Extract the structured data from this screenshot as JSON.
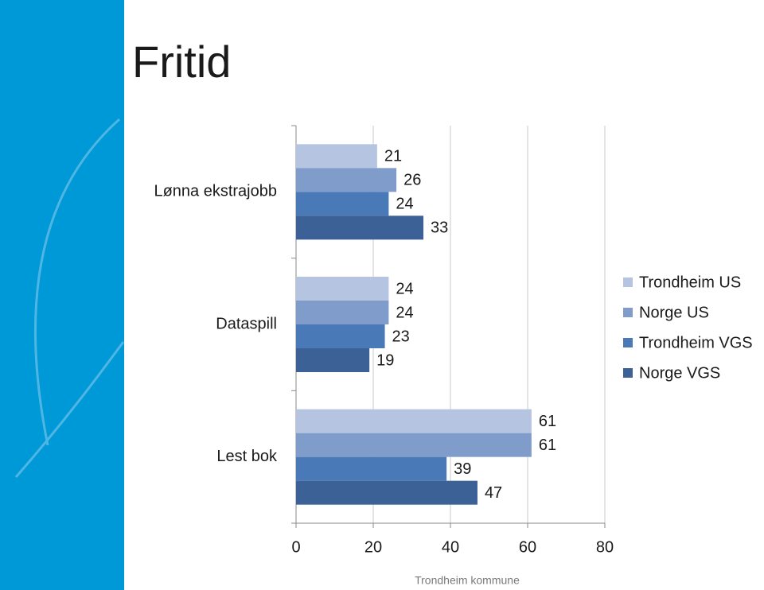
{
  "chart_data": {
    "type": "bar",
    "orientation": "horizontal",
    "title": "Fritid",
    "categories": [
      "Lønna ekstrajobb",
      "Dataspill",
      "Lest bok"
    ],
    "series": [
      {
        "name": "Trondheim US",
        "color": "#b5c4e0",
        "values": [
          21,
          24,
          61
        ]
      },
      {
        "name": "Norge US",
        "color": "#7f9ccb",
        "values": [
          26,
          24,
          61
        ]
      },
      {
        "name": "Trondheim VGS",
        "color": "#4a79b7",
        "values": [
          24,
          23,
          39
        ]
      },
      {
        "name": "Norge VGS",
        "color": "#3b6196",
        "values": [
          33,
          19,
          47
        ]
      }
    ],
    "xlim": [
      0,
      80
    ],
    "xticks": [
      0,
      20,
      40,
      60,
      80
    ],
    "grid": true,
    "legend": "right"
  },
  "footer": "Trondheim kommune"
}
